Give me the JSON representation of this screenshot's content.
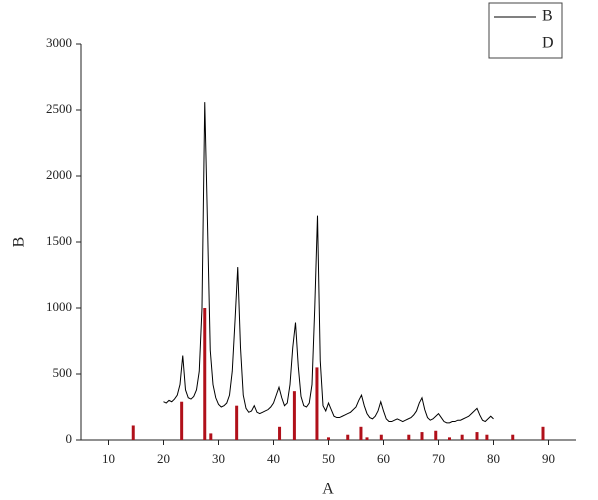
{
  "chart_data": {
    "type": "line",
    "x_label": "A",
    "y_label": "B",
    "xlim": [
      5,
      95
    ],
    "xticks": [
      10,
      20,
      30,
      40,
      50,
      60,
      70,
      80,
      90
    ],
    "ylim": [
      0,
      3000
    ],
    "yticks": [
      0,
      500,
      1000,
      1500,
      2000,
      2500,
      3000
    ],
    "grid": false,
    "legend": "top-right",
    "series": [
      {
        "name": "B",
        "type": "line",
        "color": "#000000",
        "x": [
          20,
          20.5,
          21,
          21.5,
          22,
          22.5,
          23,
          23.5,
          24,
          24.5,
          25,
          25.5,
          26,
          26.5,
          27,
          27.5,
          28,
          28.5,
          29,
          29.5,
          30,
          30.5,
          31,
          31.5,
          32,
          32.5,
          33,
          33.5,
          34,
          34.5,
          35,
          35.5,
          36,
          36.5,
          37,
          37.5,
          38,
          38.5,
          39,
          39.5,
          40,
          40.5,
          41,
          41.5,
          42,
          42.5,
          43,
          43.5,
          44,
          44.5,
          45,
          45.5,
          46,
          46.5,
          47,
          47.5,
          48,
          48.5,
          49,
          49.5,
          50,
          50.5,
          51,
          51.5,
          52,
          52.5,
          53,
          53.5,
          54,
          54.5,
          55,
          55.5,
          56,
          56.5,
          57,
          57.5,
          58,
          58.5,
          59,
          59.5,
          60,
          60.5,
          61,
          61.5,
          62,
          62.5,
          63,
          63.5,
          64,
          64.5,
          65,
          65.5,
          66,
          66.5,
          67,
          67.5,
          68,
          68.5,
          69,
          69.5,
          70,
          70.5,
          71,
          71.5,
          72,
          72.5,
          73,
          73.5,
          74,
          74.5,
          75,
          75.5,
          76,
          76.5,
          77,
          77.5,
          78,
          78.5,
          79,
          79.5,
          80
        ],
        "values": [
          290,
          280,
          300,
          290,
          310,
          340,
          420,
          640,
          380,
          320,
          310,
          330,
          380,
          520,
          1000,
          2560,
          1640,
          680,
          420,
          320,
          270,
          250,
          260,
          280,
          340,
          520,
          900,
          1310,
          700,
          340,
          240,
          210,
          220,
          260,
          210,
          200,
          210,
          220,
          230,
          250,
          280,
          340,
          400,
          320,
          260,
          280,
          420,
          700,
          890,
          560,
          330,
          260,
          250,
          280,
          420,
          1000,
          1700,
          600,
          260,
          220,
          280,
          230,
          180,
          170,
          170,
          180,
          190,
          200,
          210,
          230,
          250,
          300,
          340,
          260,
          200,
          170,
          160,
          180,
          220,
          290,
          220,
          160,
          140,
          140,
          150,
          160,
          150,
          140,
          150,
          160,
          170,
          190,
          220,
          280,
          320,
          230,
          170,
          150,
          160,
          180,
          200,
          170,
          140,
          130,
          130,
          140,
          140,
          150,
          150,
          160,
          170,
          180,
          200,
          220,
          240,
          190,
          150,
          140,
          160,
          180,
          160
        ]
      },
      {
        "name": "D",
        "type": "stick",
        "color": "#b0101a",
        "x": [
          14.5,
          23.3,
          27.5,
          28.6,
          33.3,
          41.1,
          43.8,
          47.9,
          50,
          53.5,
          55.9,
          57,
          59.6,
          64.6,
          67,
          69.5,
          72,
          74.3,
          77,
          78.8,
          83.5,
          89
        ],
        "values": [
          110,
          290,
          1000,
          50,
          260,
          100,
          370,
          550,
          20,
          40,
          100,
          20,
          40,
          40,
          60,
          70,
          20,
          40,
          60,
          40,
          40,
          100
        ]
      }
    ]
  }
}
